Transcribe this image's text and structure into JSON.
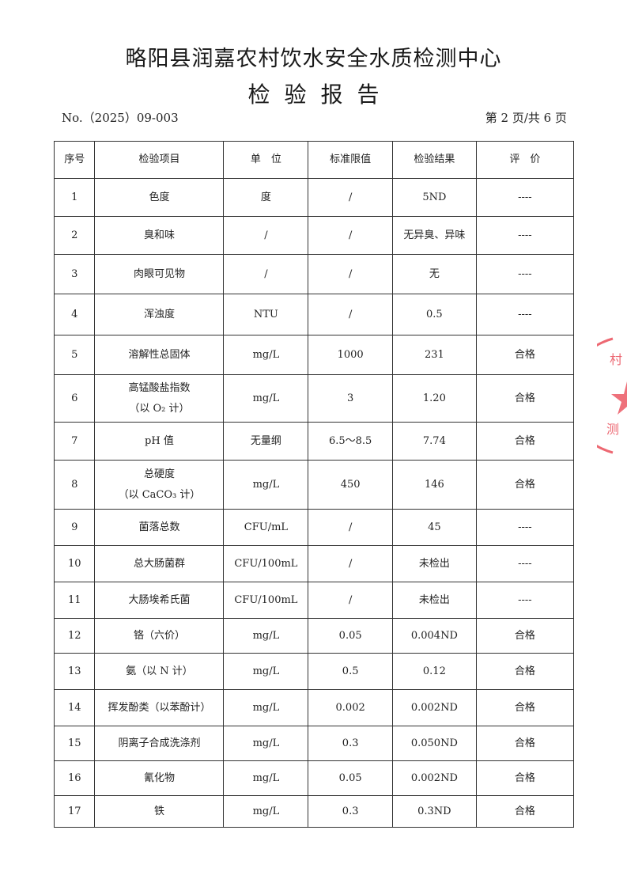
{
  "header": {
    "title": "略阳县润嘉农村饮水安全水质检测中心",
    "subtitle": "检验报告",
    "report_no": "No.（2025）09-003",
    "page_info": "第 2 页/共 6 页"
  },
  "table": {
    "columns": [
      "序号",
      "检验项目",
      "单　位",
      "标准限值",
      "检验结果",
      "评　价"
    ],
    "rows": [
      {
        "no": "1",
        "item": "色度",
        "item2": "",
        "unit": "度",
        "limit": "/",
        "result": "5ND",
        "eval": "----",
        "h": 48
      },
      {
        "no": "2",
        "item": "臭和味",
        "item2": "",
        "unit": "/",
        "limit": "/",
        "result": "无异臭、异味",
        "eval": "----",
        "h": 48
      },
      {
        "no": "3",
        "item": "肉眼可见物",
        "item2": "",
        "unit": "/",
        "limit": "/",
        "result": "无",
        "eval": "----",
        "h": 50
      },
      {
        "no": "4",
        "item": "浑浊度",
        "item2": "",
        "unit": "NTU",
        "limit": "/",
        "result": "0.5",
        "eval": "----",
        "h": 52
      },
      {
        "no": "5",
        "item": "溶解性总固体",
        "item2": "",
        "unit": "mg/L",
        "limit": "1000",
        "result": "231",
        "eval": "合格",
        "h": 50
      },
      {
        "no": "6",
        "item": "高锰酸盐指数",
        "item2": "（以 O₂ 计）",
        "unit": "mg/L",
        "limit": "3",
        "result": "1.20",
        "eval": "合格",
        "h": 60
      },
      {
        "no": "7",
        "item": "pH 值",
        "item2": "",
        "unit": "无量纲",
        "limit": "6.5～8.5",
        "result": "7.74",
        "eval": "合格",
        "h": 48
      },
      {
        "no": "8",
        "item": "总硬度",
        "item2": "（以 CaCO₃ 计）",
        "unit": "mg/L",
        "limit": "450",
        "result": "146",
        "eval": "合格",
        "h": 62
      },
      {
        "no": "9",
        "item": "菌落总数",
        "item2": "",
        "unit": "CFU/mL",
        "limit": "/",
        "result": "45",
        "eval": "----",
        "h": 46
      },
      {
        "no": "10",
        "item": "总大肠菌群",
        "item2": "",
        "unit": "CFU/100mL",
        "limit": "/",
        "result": "未检出",
        "eval": "----",
        "h": 46
      },
      {
        "no": "11",
        "item": "大肠埃希氏菌",
        "item2": "",
        "unit": "CFU/100mL",
        "limit": "/",
        "result": "未检出",
        "eval": "----",
        "h": 46
      },
      {
        "no": "12",
        "item": "铬（六价）",
        "item2": "",
        "unit": "mg/L",
        "limit": "0.05",
        "result": "0.004ND",
        "eval": "合格",
        "h": 44
      },
      {
        "no": "13",
        "item": "氨（以 N 计）",
        "item2": "",
        "unit": "mg/L",
        "limit": "0.5",
        "result": "0.12",
        "eval": "合格",
        "h": 46
      },
      {
        "no": "14",
        "item": "挥发酚类（以苯酚计）",
        "item2": "",
        "unit": "mg/L",
        "limit": "0.002",
        "result": "0.002ND",
        "eval": "合格",
        "h": 46
      },
      {
        "no": "15",
        "item": "阴离子合成洗涤剂",
        "item2": "",
        "unit": "mg/L",
        "limit": "0.3",
        "result": "0.050ND",
        "eval": "合格",
        "h": 44
      },
      {
        "no": "16",
        "item": "氰化物",
        "item2": "",
        "unit": "mg/L",
        "limit": "0.05",
        "result": "0.002ND",
        "eval": "合格",
        "h": 44
      },
      {
        "no": "17",
        "item": "铁",
        "item2": "",
        "unit": "mg/L",
        "limit": "0.3",
        "result": "0.3ND",
        "eval": "合格",
        "h": 40
      }
    ]
  },
  "stamp": {
    "text": "村 测",
    "color": "#e8424f"
  }
}
